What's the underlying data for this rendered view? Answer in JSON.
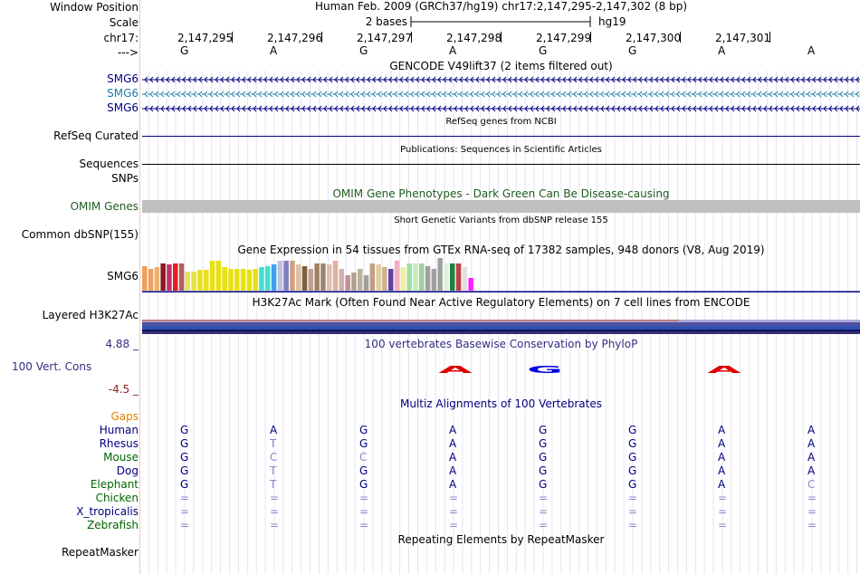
{
  "header": {
    "window_position_label": "Window Position",
    "assembly_position": "Human Feb. 2009 (GRCh37/hg19)   chr17:2,147,295-2,147,302 (8 bp)",
    "scale_label": "Scale",
    "scale_text": "2 bases",
    "scale_db": "hg19",
    "chrom_label": "chr17:",
    "strand_label": "--->",
    "coordinates": [
      "2,147,295",
      "2,147,296",
      "2,147,297",
      "2,147,298",
      "2,147,299",
      "2,147,300",
      "2,147,301"
    ],
    "bases": [
      "G",
      "A",
      "G",
      "A",
      "G",
      "G",
      "A",
      "A"
    ]
  },
  "tracks": {
    "gencode": {
      "title": "GENCODE V49lift37 (2 items filtered out)",
      "genes": [
        {
          "name": "SMG6",
          "color": "#000080"
        },
        {
          "name": "SMG6",
          "color": "#1a7fa8"
        },
        {
          "name": "SMG6",
          "color": "#000080"
        }
      ]
    },
    "refseq": {
      "title": "RefSeq genes from NCBI",
      "label": "RefSeq Curated",
      "color": "#000080"
    },
    "pubs": {
      "title": "Publications: Sequences in Scientific Articles",
      "label": "Sequences"
    },
    "snps_label": "SNPs",
    "omim": {
      "title": "OMIM Gene Phenotypes - Dark Green Can Be Disease-causing",
      "label": "OMIM Genes",
      "color": "#1f5c1f",
      "bar_color": "#c0c0c0"
    },
    "dbsnp": {
      "title": "Short Genetic Variants from dbSNP release 155",
      "label": "Common dbSNP(155)"
    },
    "gtex": {
      "title": "Gene Expression in 54 tissues from GTEx RNA-seq of 17382 samples, 948 donors (V8, Aug 2019)",
      "label": "SMG6",
      "bars": [
        {
          "level": 0.9,
          "color": "#f0a05a"
        },
        {
          "level": 0.8,
          "color": "#f0a05a"
        },
        {
          "level": 0.85,
          "color": "#f0b070"
        },
        {
          "level": 1.0,
          "color": "#8b1a1a"
        },
        {
          "level": 0.95,
          "color": "#c0306a"
        },
        {
          "level": 1.0,
          "color": "#e02020"
        },
        {
          "level": 1.0,
          "color": "#b06060"
        },
        {
          "level": 0.7,
          "color": "#e8e060"
        },
        {
          "level": 0.7,
          "color": "#e8e040"
        },
        {
          "level": 0.75,
          "color": "#e8e020"
        },
        {
          "level": 0.75,
          "color": "#e8e020"
        },
        {
          "level": 1.1,
          "color": "#e8e010"
        },
        {
          "level": 1.1,
          "color": "#e8e010"
        },
        {
          "level": 0.85,
          "color": "#e8e010"
        },
        {
          "level": 0.8,
          "color": "#e8e010"
        },
        {
          "level": 0.8,
          "color": "#e8e010"
        },
        {
          "level": 0.8,
          "color": "#e8e010"
        },
        {
          "level": 0.75,
          "color": "#e8e010"
        },
        {
          "level": 0.8,
          "color": "#e8e010"
        },
        {
          "level": 0.85,
          "color": "#40e0d0"
        },
        {
          "level": 0.9,
          "color": "#40e0d0"
        },
        {
          "level": 0.95,
          "color": "#40a0f0"
        },
        {
          "level": 1.1,
          "color": "#c0c0e0"
        },
        {
          "level": 1.1,
          "color": "#8080c0"
        },
        {
          "level": 1.1,
          "color": "#d0a080"
        },
        {
          "level": 0.95,
          "color": "#e0c0a0"
        },
        {
          "level": 0.9,
          "color": "#806040"
        },
        {
          "level": 0.8,
          "color": "#c0a090"
        },
        {
          "level": 1.0,
          "color": "#a08060"
        },
        {
          "level": 1.0,
          "color": "#a08070"
        },
        {
          "level": 0.95,
          "color": "#e0c0b0"
        },
        {
          "level": 1.1,
          "color": "#e0b0a0"
        },
        {
          "level": 0.8,
          "color": "#d0b0b0"
        },
        {
          "level": 0.55,
          "color": "#c09090"
        },
        {
          "level": 0.65,
          "color": "#b0a090"
        },
        {
          "level": 0.8,
          "color": "#c0b0a0"
        },
        {
          "level": 0.55,
          "color": "#a0a0a0"
        },
        {
          "level": 1.0,
          "color": "#c0a080"
        },
        {
          "level": 0.95,
          "color": "#e0d0a0"
        },
        {
          "level": 0.85,
          "color": "#d0b090"
        },
        {
          "level": 0.8,
          "color": "#6040a0"
        },
        {
          "level": 1.1,
          "color": "#f0b0c0"
        },
        {
          "level": 0.85,
          "color": "#f0f0a0"
        },
        {
          "level": 1.0,
          "color": "#a0e0a0"
        },
        {
          "level": 1.0,
          "color": "#c0f0c0"
        },
        {
          "level": 1.0,
          "color": "#a0d0a0"
        },
        {
          "level": 0.9,
          "color": "#a0a0a0"
        },
        {
          "level": 0.8,
          "color": "#a0a0a0"
        },
        {
          "level": 1.2,
          "color": "#a0a0a0"
        },
        {
          "level": 1.0,
          "color": "#e0f0e0"
        },
        {
          "level": 1.0,
          "color": "#208040"
        },
        {
          "level": 1.0,
          "color": "#c04040"
        },
        {
          "level": 0.85,
          "color": "#e0e0e0"
        },
        {
          "level": 0.45,
          "color": "#ff20ff"
        }
      ]
    },
    "h3k27ac": {
      "title": "H3K27Ac Mark (Often Found Near Active Regulatory Elements) on 7 cell lines from ENCODE",
      "label": "Layered H3K27Ac"
    },
    "phylop": {
      "title": "100 vertebrates Basewise Conservation by PhyloP",
      "label": "100 Vert. Cons",
      "max": "4.88 _",
      "min": "-4.5 _",
      "bases": [
        {
          "base": "A",
          "color": "#e00000",
          "index": 3
        },
        {
          "base": "G",
          "color": "#0000e0",
          "index": 4
        },
        {
          "base": "A",
          "color": "#e00000",
          "index": 6
        }
      ]
    },
    "multiz": {
      "title": "Multiz Alignments of 100 Vertebrates",
      "gaps_label": "Gaps",
      "species": [
        {
          "name": "Human",
          "color": "#000080",
          "bases": [
            "G",
            "A",
            "G",
            "A",
            "G",
            "G",
            "A",
            "A"
          ]
        },
        {
          "name": "Rhesus",
          "color": "#000080",
          "bases": [
            "G",
            "T",
            "G",
            "A",
            "G",
            "G",
            "A",
            "A"
          ]
        },
        {
          "name": "Mouse",
          "color": "#006400",
          "bases": [
            "G",
            "C",
            "C",
            "A",
            "G",
            "G",
            "A",
            "A"
          ]
        },
        {
          "name": "Dog",
          "color": "#000080",
          "bases": [
            "G",
            "T",
            "G",
            "A",
            "G",
            "G",
            "A",
            "A"
          ]
        },
        {
          "name": "Elephant",
          "color": "#006400",
          "bases": [
            "G",
            "T",
            "G",
            "A",
            "G",
            "G",
            "A",
            "C"
          ]
        },
        {
          "name": "Chicken",
          "color": "#006400",
          "bases": [
            "=",
            "=",
            "=",
            "=",
            "=",
            "=",
            "=",
            "="
          ]
        },
        {
          "name": "X_tropicalis",
          "color": "#000080",
          "bases": [
            "=",
            "=",
            "=",
            "=",
            "=",
            "=",
            "=",
            "="
          ]
        },
        {
          "name": "Zebrafish",
          "color": "#006400",
          "bases": [
            "=",
            "=",
            "=",
            "=",
            "=",
            "=",
            "=",
            "="
          ]
        }
      ]
    },
    "rmsk": {
      "title": "Repeating Elements by RepeatMasker",
      "label": "RepeatMasker"
    }
  }
}
